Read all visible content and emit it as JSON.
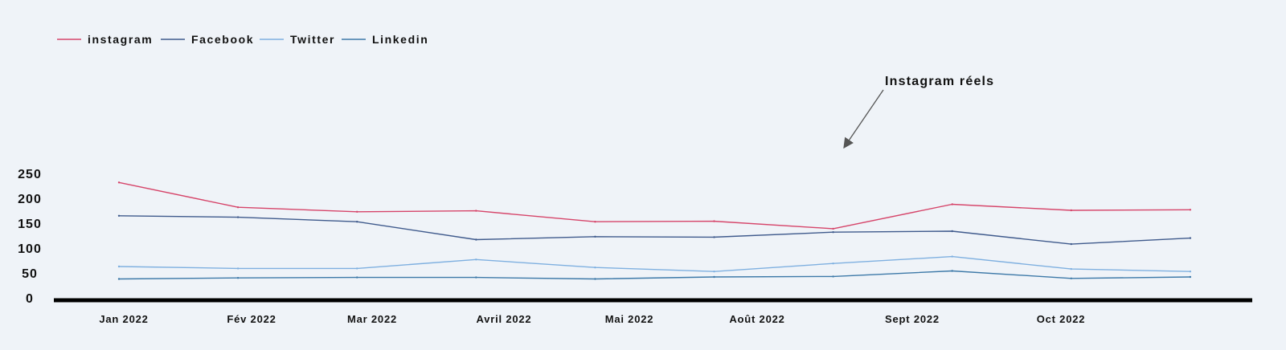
{
  "chart_data": {
    "type": "line",
    "title": "",
    "xlabel": "",
    "ylabel": "",
    "ylim": [
      0,
      250
    ],
    "yticks": [
      0,
      50,
      100,
      150,
      200,
      250
    ],
    "grid": false,
    "legend_position": "top-left",
    "x_labels": [
      "Jan 2022",
      "Fév 2022",
      "Mar 2022",
      "Avril 2022",
      "Mai 2022",
      "Août 2022",
      "Sept 2022",
      "Oct 2022"
    ],
    "point_count": 10,
    "series": [
      {
        "name": "instagram",
        "color": "#d6456a",
        "values": [
          232,
          182,
          173,
          175,
          153,
          154,
          139,
          188,
          176,
          177
        ]
      },
      {
        "name": "Facebook",
        "color": "#3f5a8c",
        "values": [
          165,
          162,
          153,
          117,
          123,
          122,
          132,
          134,
          108,
          120
        ]
      },
      {
        "name": "Twitter",
        "color": "#7fb0e0",
        "values": [
          63,
          59,
          59,
          77,
          61,
          53,
          69,
          83,
          58,
          53
        ]
      },
      {
        "name": "Linkedin",
        "color": "#3d79a8",
        "values": [
          38,
          40,
          41,
          41,
          38,
          42,
          43,
          54,
          39,
          42
        ]
      }
    ],
    "annotations": [
      {
        "text": "Instagram réels",
        "series": "instagram",
        "point_index": 6
      }
    ]
  }
}
